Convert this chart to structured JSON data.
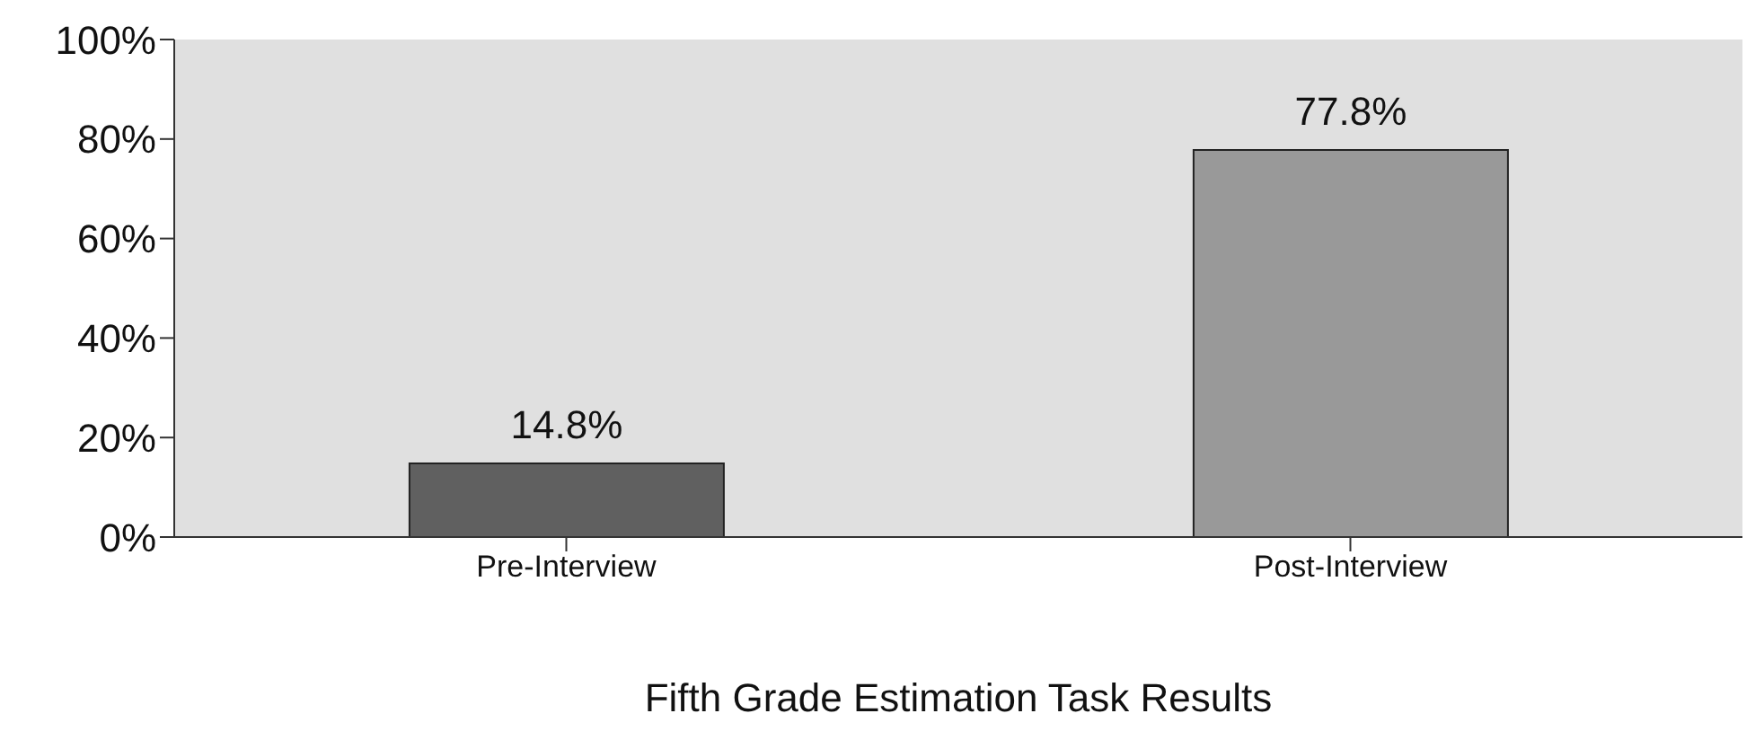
{
  "chart_data": {
    "type": "bar",
    "xlabel": "Fifth Grade Estimation Task Results",
    "categories": [
      "Pre-Interview",
      "Post-Interview"
    ],
    "values": [
      14.8,
      77.8
    ],
    "colors": [
      "#606060",
      "#999999"
    ],
    "value_labels": [
      "14.8%",
      "77.8%"
    ],
    "ylim": [
      0,
      100
    ],
    "yticks": [
      {
        "value": 0,
        "label": "0%"
      },
      {
        "value": 20,
        "label": "20%"
      },
      {
        "value": 40,
        "label": "40%"
      },
      {
        "value": 60,
        "label": "60%"
      },
      {
        "value": 80,
        "label": "80%"
      },
      {
        "value": 100,
        "label": "100%"
      }
    ],
    "legend": false
  }
}
